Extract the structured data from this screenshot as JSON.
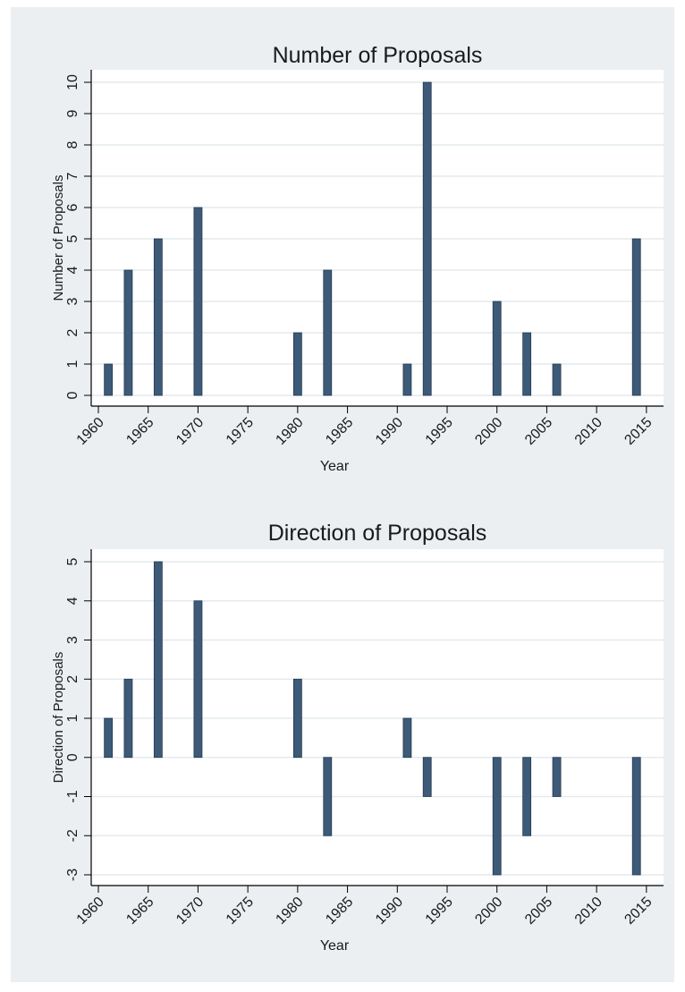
{
  "chart_data": [
    {
      "type": "bar",
      "title": "Number of Proposals",
      "xlabel": "Year",
      "ylabel": "Number of Proposals",
      "xlim": [
        1960,
        2016
      ],
      "ylim": [
        0,
        10
      ],
      "xticks": [
        "1960",
        "1965",
        "1970",
        "1975",
        "1980",
        "1985",
        "1990",
        "1995",
        "2000",
        "2005",
        "2010",
        "2015"
      ],
      "yticks": [
        "0",
        "1",
        "2",
        "3",
        "4",
        "5",
        "6",
        "7",
        "8",
        "9",
        "10"
      ],
      "grid": true,
      "x": [
        1961,
        1963,
        1966,
        1970,
        1980,
        1983,
        1991,
        1993,
        2000,
        2003,
        2006,
        2014
      ],
      "values": [
        1,
        4,
        5,
        6,
        2,
        4,
        1,
        10,
        3,
        2,
        1,
        5
      ],
      "bar_color": "#3d5a78"
    },
    {
      "type": "bar",
      "title": "Direction of Proposals",
      "xlabel": "Year",
      "ylabel": "Direction of Proposals",
      "xlim": [
        1960,
        2016
      ],
      "ylim": [
        -3,
        5
      ],
      "xticks": [
        "1960",
        "1965",
        "1970",
        "1975",
        "1980",
        "1985",
        "1990",
        "1995",
        "2000",
        "2005",
        "2010",
        "2015"
      ],
      "yticks": [
        "-3",
        "-2",
        "-1",
        "0",
        "1",
        "2",
        "3",
        "4",
        "5"
      ],
      "grid": true,
      "x": [
        1961,
        1963,
        1966,
        1970,
        1980,
        1983,
        1991,
        1993,
        2000,
        2003,
        2006,
        2014
      ],
      "values": [
        1,
        2,
        5,
        4,
        2,
        -2,
        1,
        -1,
        -3,
        -2,
        -1,
        -3
      ],
      "bar_color": "#3d5a78"
    }
  ],
  "colors": {
    "outer_background": "#ebeff2",
    "plot_background": "#ffffff",
    "grid": "#e4eaee",
    "axis": "#000000",
    "bar": "#3d5a78",
    "bar_outline": "#243850"
  }
}
